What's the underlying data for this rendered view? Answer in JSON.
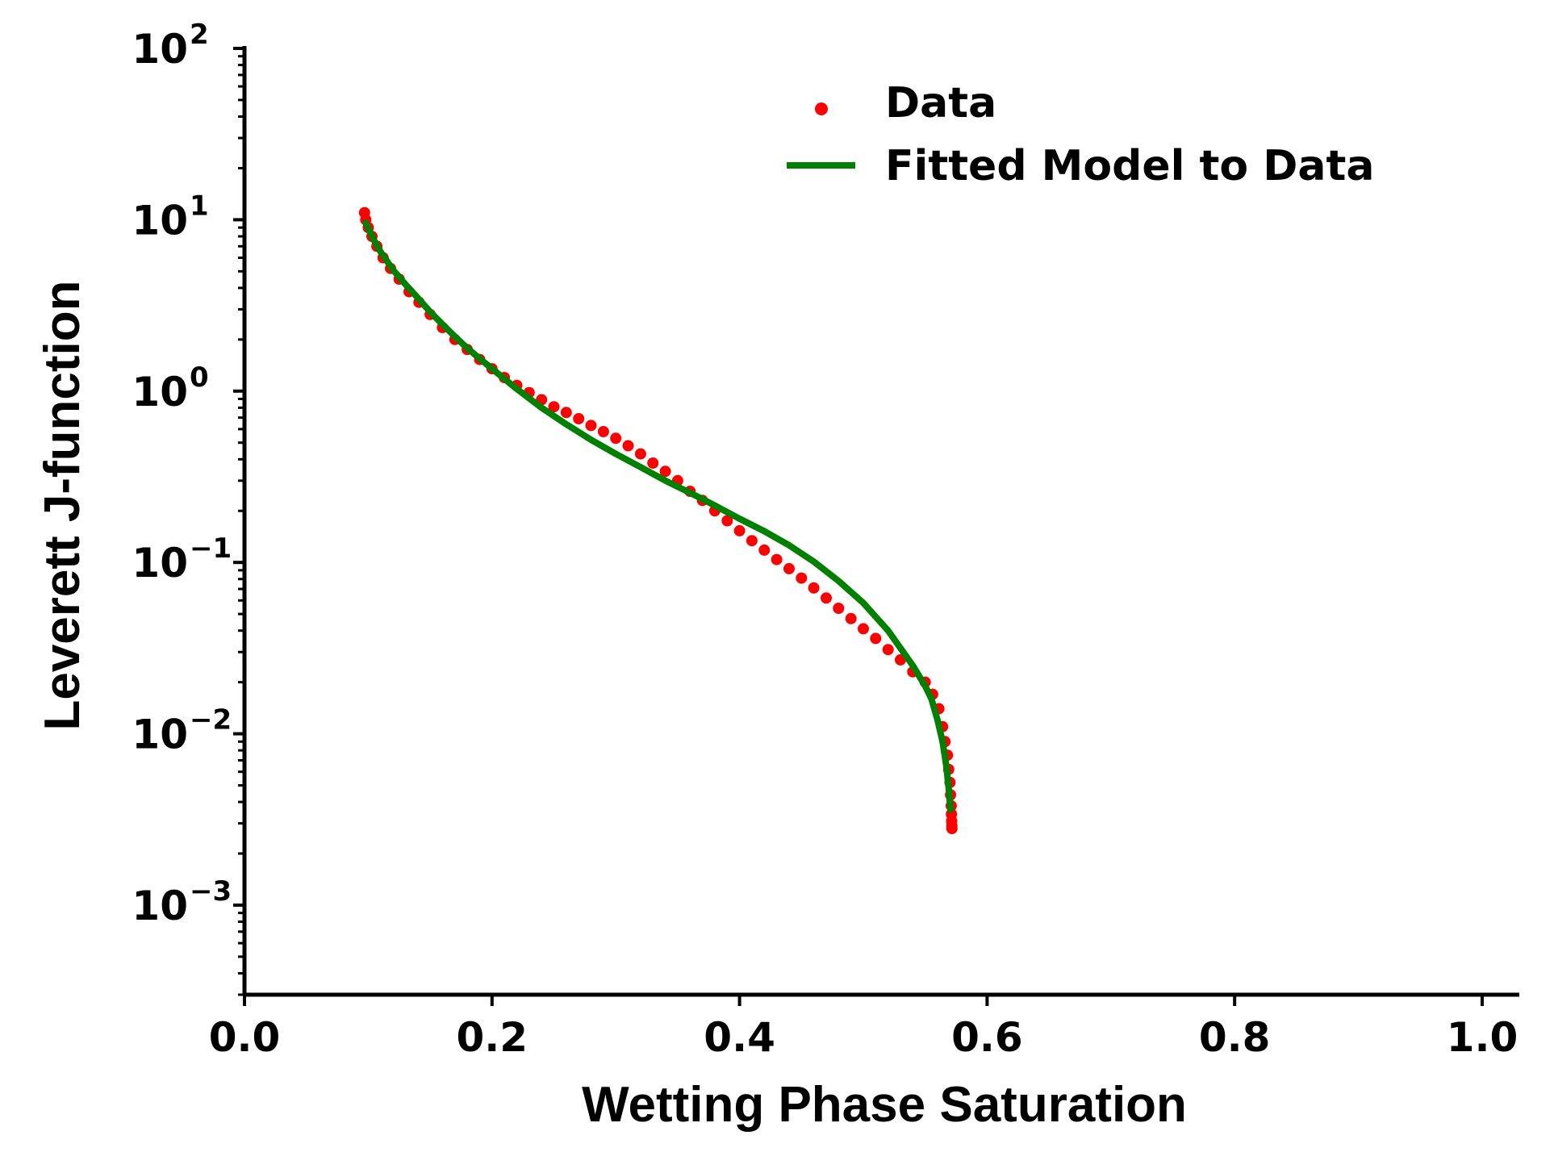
{
  "chart_data": {
    "type": "scatter",
    "xlabel": "Wetting Phase Saturation",
    "ylabel": "Leverett J-function",
    "xlim": [
      0.0,
      1.03
    ],
    "ylim": [
      0.0003,
      100
    ],
    "yscale": "log",
    "grid": false,
    "legend_position": "top-right",
    "x_ticks": [
      "0.0",
      "0.2",
      "0.4",
      "0.6",
      "0.8",
      "1.0"
    ],
    "y_ticks": [
      {
        "base": "10",
        "exp": "2"
      },
      {
        "base": "10",
        "exp": "1"
      },
      {
        "base": "10",
        "exp": "0"
      },
      {
        "base": "10",
        "exp": "−1"
      },
      {
        "base": "10",
        "exp": "−2"
      },
      {
        "base": "10",
        "exp": "−3"
      }
    ],
    "series": [
      {
        "name": "Data",
        "kind": "scatter",
        "color": "#ff0000",
        "points": [
          [
            0.097,
            11.0
          ],
          [
            0.098,
            10.0
          ],
          [
            0.1,
            9.0
          ],
          [
            0.103,
            8.0
          ],
          [
            0.107,
            7.0
          ],
          [
            0.112,
            6.0
          ],
          [
            0.118,
            5.2
          ],
          [
            0.125,
            4.5
          ],
          [
            0.133,
            3.8
          ],
          [
            0.141,
            3.3
          ],
          [
            0.15,
            2.8
          ],
          [
            0.16,
            2.35
          ],
          [
            0.17,
            2.0
          ],
          [
            0.18,
            1.75
          ],
          [
            0.19,
            1.53
          ],
          [
            0.2,
            1.35
          ],
          [
            0.21,
            1.2
          ],
          [
            0.22,
            1.08
          ],
          [
            0.23,
            0.98
          ],
          [
            0.24,
            0.89
          ],
          [
            0.25,
            0.81
          ],
          [
            0.26,
            0.75
          ],
          [
            0.27,
            0.69
          ],
          [
            0.28,
            0.63
          ],
          [
            0.29,
            0.58
          ],
          [
            0.3,
            0.53
          ],
          [
            0.31,
            0.48
          ],
          [
            0.32,
            0.43
          ],
          [
            0.33,
            0.38
          ],
          [
            0.34,
            0.34
          ],
          [
            0.35,
            0.3
          ],
          [
            0.36,
            0.26
          ],
          [
            0.37,
            0.23
          ],
          [
            0.38,
            0.2
          ],
          [
            0.39,
            0.175
          ],
          [
            0.4,
            0.153
          ],
          [
            0.41,
            0.134
          ],
          [
            0.42,
            0.118
          ],
          [
            0.43,
            0.104
          ],
          [
            0.44,
            0.092
          ],
          [
            0.45,
            0.081
          ],
          [
            0.46,
            0.071
          ],
          [
            0.47,
            0.062
          ],
          [
            0.48,
            0.054
          ],
          [
            0.49,
            0.047
          ],
          [
            0.5,
            0.041
          ],
          [
            0.51,
            0.036
          ],
          [
            0.52,
            0.031
          ],
          [
            0.53,
            0.027
          ],
          [
            0.54,
            0.023
          ],
          [
            0.55,
            0.02
          ],
          [
            0.556,
            0.017
          ],
          [
            0.561,
            0.014
          ],
          [
            0.564,
            0.011
          ],
          [
            0.566,
            0.009
          ],
          [
            0.568,
            0.0075
          ],
          [
            0.569,
            0.0062
          ],
          [
            0.57,
            0.0052
          ],
          [
            0.5705,
            0.0044
          ],
          [
            0.571,
            0.0038
          ],
          [
            0.5712,
            0.0034
          ],
          [
            0.5714,
            0.0031
          ],
          [
            0.5715,
            0.0029
          ],
          [
            0.5716,
            0.0028
          ]
        ]
      },
      {
        "name": "Fitted Model to Data",
        "kind": "line",
        "color": "#008000",
        "points": [
          [
            0.098,
            9.6
          ],
          [
            0.1,
            8.9
          ],
          [
            0.105,
            7.5
          ],
          [
            0.11,
            6.5
          ],
          [
            0.12,
            5.1
          ],
          [
            0.13,
            4.2
          ],
          [
            0.14,
            3.5
          ],
          [
            0.15,
            2.9
          ],
          [
            0.16,
            2.45
          ],
          [
            0.17,
            2.08
          ],
          [
            0.18,
            1.78
          ],
          [
            0.19,
            1.55
          ],
          [
            0.2,
            1.35
          ],
          [
            0.22,
            1.03
          ],
          [
            0.24,
            0.8
          ],
          [
            0.26,
            0.64
          ],
          [
            0.28,
            0.52
          ],
          [
            0.3,
            0.43
          ],
          [
            0.32,
            0.36
          ],
          [
            0.34,
            0.3
          ],
          [
            0.36,
            0.255
          ],
          [
            0.38,
            0.215
          ],
          [
            0.4,
            0.18
          ],
          [
            0.42,
            0.152
          ],
          [
            0.44,
            0.126
          ],
          [
            0.46,
            0.101
          ],
          [
            0.48,
            0.078
          ],
          [
            0.5,
            0.058
          ],
          [
            0.52,
            0.04
          ],
          [
            0.54,
            0.025
          ],
          [
            0.55,
            0.019
          ],
          [
            0.555,
            0.016
          ],
          [
            0.56,
            0.012
          ],
          [
            0.564,
            0.009
          ],
          [
            0.567,
            0.0065
          ],
          [
            0.569,
            0.0048
          ],
          [
            0.5705,
            0.0036
          ]
        ]
      }
    ]
  }
}
